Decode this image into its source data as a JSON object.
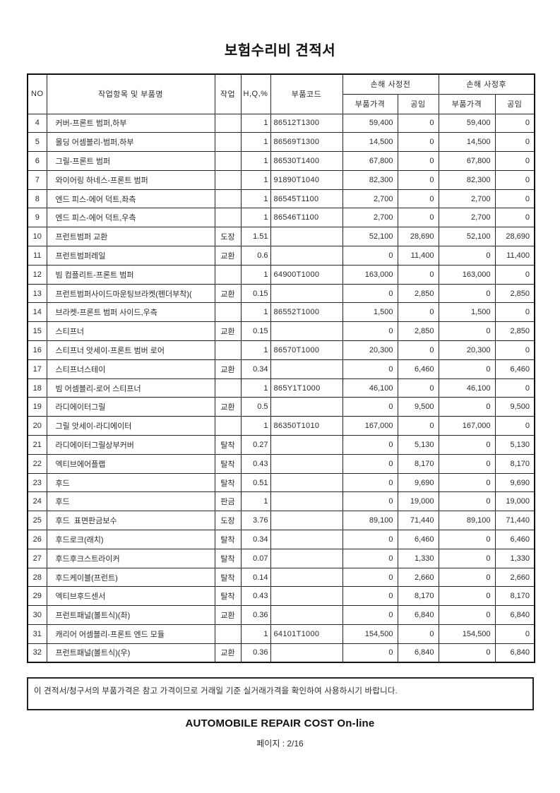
{
  "page": {
    "title": "보험수리비 견적서",
    "notice": "이 견적서/청구서의 부품가격은 참고 가격이므로 거래일 기준 실거래가격을 확인하여 사용하시기 바랍니다.",
    "footer_brand": "AUTOMOBILE REPAIR COST On-line",
    "footer_page": "페이지 : 2/16"
  },
  "table": {
    "headers": {
      "no": "NO",
      "item": "작업항목 및 부품명",
      "work": "작업",
      "hq": "H,Q,%",
      "part_code": "부품코드",
      "before_group": "손해 사정전",
      "after_group": "손해 사정후",
      "part_price": "부품가격",
      "labor": "공임"
    },
    "rows": [
      {
        "no": "4",
        "name": "커버-프론트 범퍼,하부",
        "work": "",
        "hq": "1",
        "code": "86512T1300",
        "price_before": "59,400",
        "labor_before": "0",
        "price_after": "59,400",
        "labor_after": "0"
      },
      {
        "no": "5",
        "name": "몰딩 어셈블리-범퍼,하부",
        "work": "",
        "hq": "1",
        "code": "86569T1300",
        "price_before": "14,500",
        "labor_before": "0",
        "price_after": "14,500",
        "labor_after": "0"
      },
      {
        "no": "6",
        "name": "그릴-프론트 범퍼",
        "work": "",
        "hq": "1",
        "code": "86530T1400",
        "price_before": "67,800",
        "labor_before": "0",
        "price_after": "67,800",
        "labor_after": "0"
      },
      {
        "no": "7",
        "name": "와이어링 하네스-프론트 범퍼",
        "work": "",
        "hq": "1",
        "code": "91890T1040",
        "price_before": "82,300",
        "labor_before": "0",
        "price_after": "82,300",
        "labor_after": "0"
      },
      {
        "no": "8",
        "name": "엔드 피스-에어 덕트,좌측",
        "work": "",
        "hq": "1",
        "code": "86545T1100",
        "price_before": "2,700",
        "labor_before": "0",
        "price_after": "2,700",
        "labor_after": "0"
      },
      {
        "no": "9",
        "name": "엔드 피스-에어 덕트,우측",
        "work": "",
        "hq": "1",
        "code": "86546T1100",
        "price_before": "2,700",
        "labor_before": "0",
        "price_after": "2,700",
        "labor_after": "0"
      },
      {
        "no": "10",
        "name": "프런트범퍼 교환",
        "work": "도장",
        "hq": "1.51",
        "code": "",
        "price_before": "52,100",
        "labor_before": "28,690",
        "price_after": "52,100",
        "labor_after": "28,690"
      },
      {
        "no": "11",
        "name": "프런트범퍼레일",
        "work": "교환",
        "hq": "0.6",
        "code": "",
        "price_before": "0",
        "labor_before": "11,400",
        "price_after": "0",
        "labor_after": "11,400"
      },
      {
        "no": "12",
        "name": "빔 컴플리트-프론트 범퍼",
        "work": "",
        "hq": "1",
        "code": "64900T1000",
        "price_before": "163,000",
        "labor_before": "0",
        "price_after": "163,000",
        "labor_after": "0"
      },
      {
        "no": "13",
        "name": "프런트범퍼사이드마운팅브라켓(펜더부착)(",
        "work": "교환",
        "hq": "0.15",
        "code": "",
        "price_before": "0",
        "labor_before": "2,850",
        "price_after": "0",
        "labor_after": "2,850"
      },
      {
        "no": "14",
        "name": "브라켓-프론트 범퍼 사이드,우측",
        "work": "",
        "hq": "1",
        "code": "86552T1000",
        "price_before": "1,500",
        "labor_before": "0",
        "price_after": "1,500",
        "labor_after": "0"
      },
      {
        "no": "15",
        "name": "스티프너",
        "work": "교환",
        "hq": "0.15",
        "code": "",
        "price_before": "0",
        "labor_before": "2,850",
        "price_after": "0",
        "labor_after": "2,850"
      },
      {
        "no": "16",
        "name": "스티프너 앗세이-프론트 범버 로어",
        "work": "",
        "hq": "1",
        "code": "86570T1000",
        "price_before": "20,300",
        "labor_before": "0",
        "price_after": "20,300",
        "labor_after": "0"
      },
      {
        "no": "17",
        "name": "스티프너스테이",
        "work": "교환",
        "hq": "0.34",
        "code": "",
        "price_before": "0",
        "labor_before": "6,460",
        "price_after": "0",
        "labor_after": "6,460"
      },
      {
        "no": "18",
        "name": "빔 어셈블리-로어 스티프너",
        "work": "",
        "hq": "1",
        "code": "865Y1T1000",
        "price_before": "46,100",
        "labor_before": "0",
        "price_after": "46,100",
        "labor_after": "0"
      },
      {
        "no": "19",
        "name": "라디에이터그릴",
        "work": "교환",
        "hq": "0.5",
        "code": "",
        "price_before": "0",
        "labor_before": "9,500",
        "price_after": "0",
        "labor_after": "9,500"
      },
      {
        "no": "20",
        "name": "그릴 앗세이-라디에이터",
        "work": "",
        "hq": "1",
        "code": "86350T1010",
        "price_before": "167,000",
        "labor_before": "0",
        "price_after": "167,000",
        "labor_after": "0"
      },
      {
        "no": "21",
        "name": "라디에이터그릴상부커버",
        "work": "탈착",
        "hq": "0.27",
        "code": "",
        "price_before": "0",
        "labor_before": "5,130",
        "price_after": "0",
        "labor_after": "5,130"
      },
      {
        "no": "22",
        "name": "엑티브에어플랩",
        "work": "탈착",
        "hq": "0.43",
        "code": "",
        "price_before": "0",
        "labor_before": "8,170",
        "price_after": "0",
        "labor_after": "8,170"
      },
      {
        "no": "23",
        "name": "후드",
        "work": "탈착",
        "hq": "0.51",
        "code": "",
        "price_before": "0",
        "labor_before": "9,690",
        "price_after": "0",
        "labor_after": "9,690"
      },
      {
        "no": "24",
        "name": "후드",
        "work": "판금",
        "hq": "1",
        "code": "",
        "price_before": "0",
        "labor_before": "19,000",
        "price_after": "0",
        "labor_after": "19,000"
      },
      {
        "no": "25",
        "name": "후드  표면판금보수",
        "work": "도장",
        "hq": "3.76",
        "code": "",
        "price_before": "89,100",
        "labor_before": "71,440",
        "price_after": "89,100",
        "labor_after": "71,440"
      },
      {
        "no": "26",
        "name": "후드로크(래치)",
        "work": "탈착",
        "hq": "0.34",
        "code": "",
        "price_before": "0",
        "labor_before": "6,460",
        "price_after": "0",
        "labor_after": "6,460"
      },
      {
        "no": "27",
        "name": "후드후크스트라이커",
        "work": "탈착",
        "hq": "0.07",
        "code": "",
        "price_before": "0",
        "labor_before": "1,330",
        "price_after": "0",
        "labor_after": "1,330"
      },
      {
        "no": "28",
        "name": "후드케이블(프런트)",
        "work": "탈착",
        "hq": "0.14",
        "code": "",
        "price_before": "0",
        "labor_before": "2,660",
        "price_after": "0",
        "labor_after": "2,660"
      },
      {
        "no": "29",
        "name": "엑티브후드센서",
        "work": "탈착",
        "hq": "0.43",
        "code": "",
        "price_before": "0",
        "labor_before": "8,170",
        "price_after": "0",
        "labor_after": "8,170"
      },
      {
        "no": "30",
        "name": "프런트패널(볼트식)(좌)",
        "work": "교환",
        "hq": "0.36",
        "code": "",
        "price_before": "0",
        "labor_before": "6,840",
        "price_after": "0",
        "labor_after": "6,840"
      },
      {
        "no": "31",
        "name": "캐리어 어셈블리-프론트 엔드 모듈",
        "work": "",
        "hq": "1",
        "code": "64101T1000",
        "price_before": "154,500",
        "labor_before": "0",
        "price_after": "154,500",
        "labor_after": "0"
      },
      {
        "no": "32",
        "name": "프런트패널(볼트식)(우)",
        "work": "교환",
        "hq": "0.36",
        "code": "",
        "price_before": "0",
        "labor_before": "6,840",
        "price_after": "0",
        "labor_after": "6,840"
      }
    ]
  }
}
